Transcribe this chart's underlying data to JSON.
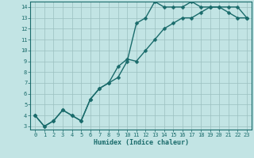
{
  "xlabel": "Humidex (Indice chaleur)",
  "bg_color": "#c2e4e4",
  "grid_color": "#9bbfbf",
  "line_color": "#1a6b6b",
  "xlim": [
    -0.5,
    23.5
  ],
  "ylim": [
    2.7,
    14.5
  ],
  "xticks": [
    0,
    1,
    2,
    3,
    4,
    5,
    6,
    7,
    8,
    9,
    10,
    11,
    12,
    13,
    14,
    15,
    16,
    17,
    18,
    19,
    20,
    21,
    22,
    23
  ],
  "yticks": [
    3,
    4,
    5,
    6,
    7,
    8,
    9,
    10,
    11,
    12,
    13,
    14
  ],
  "line1_x": [
    0,
    1,
    2,
    3,
    4,
    5,
    6,
    7,
    8,
    9,
    10,
    11,
    12,
    13,
    14,
    15,
    16,
    17,
    18,
    19,
    20,
    21,
    22,
    23
  ],
  "line1_y": [
    4,
    3,
    3.5,
    4.5,
    4,
    3.5,
    5.5,
    6.5,
    7,
    7.5,
    9,
    12.5,
    13,
    14.5,
    14,
    14,
    14,
    14.5,
    14,
    14,
    14,
    14,
    14,
    13
  ],
  "line2_x": [
    0,
    1,
    2,
    3,
    4,
    5,
    6,
    7,
    8,
    9,
    10,
    11,
    12,
    13,
    14,
    15,
    16,
    17,
    18,
    19,
    20,
    21,
    22,
    23
  ],
  "line2_y": [
    4,
    3,
    3.5,
    4.5,
    4,
    3.5,
    5.5,
    6.5,
    7,
    8.5,
    9.2,
    9,
    10,
    11,
    12,
    12.5,
    13,
    13,
    13.5,
    14,
    14,
    13.5,
    13,
    13
  ],
  "marker": "D",
  "marker_size": 2.5,
  "line_width": 1.0
}
